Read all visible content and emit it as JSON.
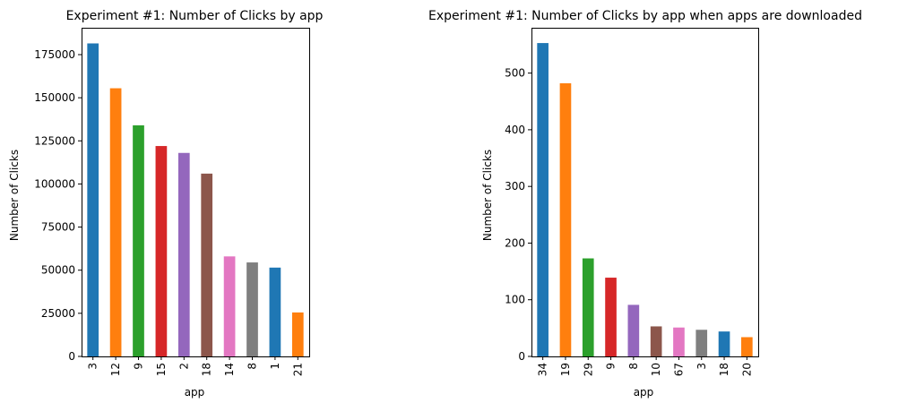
{
  "chart_data": [
    {
      "type": "bar",
      "title": "Experiment #1: Number of Clicks by app",
      "xlabel": "app",
      "ylabel": "Number of Clicks",
      "categories": [
        "3",
        "12",
        "9",
        "15",
        "2",
        "18",
        "14",
        "8",
        "1",
        "21"
      ],
      "values": [
        181500,
        155500,
        134000,
        122000,
        118000,
        106000,
        58000,
        54500,
        51500,
        25500
      ],
      "colors": [
        "#1f77b4",
        "#ff7f0e",
        "#2ca02c",
        "#d62728",
        "#9467bd",
        "#8c564b",
        "#e377c2",
        "#7f7f7f",
        "#1f77b4",
        "#ff7f0e"
      ],
      "ylim": [
        0,
        190575
      ],
      "yticks": [
        0,
        25000,
        50000,
        75000,
        100000,
        125000,
        150000,
        175000
      ],
      "grid": false,
      "legend": "none"
    },
    {
      "type": "bar",
      "title": "Experiment #1: Number of Clicks by app when apps are downloaded",
      "xlabel": "app",
      "ylabel": "Number of Clicks",
      "categories": [
        "34",
        "19",
        "29",
        "9",
        "8",
        "10",
        "67",
        "3",
        "18",
        "20"
      ],
      "values": [
        553,
        482,
        173,
        139,
        91,
        53,
        51,
        47,
        44,
        34
      ],
      "colors": [
        "#1f77b4",
        "#ff7f0e",
        "#2ca02c",
        "#d62728",
        "#9467bd",
        "#8c564b",
        "#e377c2",
        "#7f7f7f",
        "#1f77b4",
        "#ff7f0e"
      ],
      "ylim": [
        0,
        580
      ],
      "yticks": [
        0,
        100,
        200,
        300,
        400,
        500
      ],
      "grid": false,
      "legend": "none"
    }
  ]
}
